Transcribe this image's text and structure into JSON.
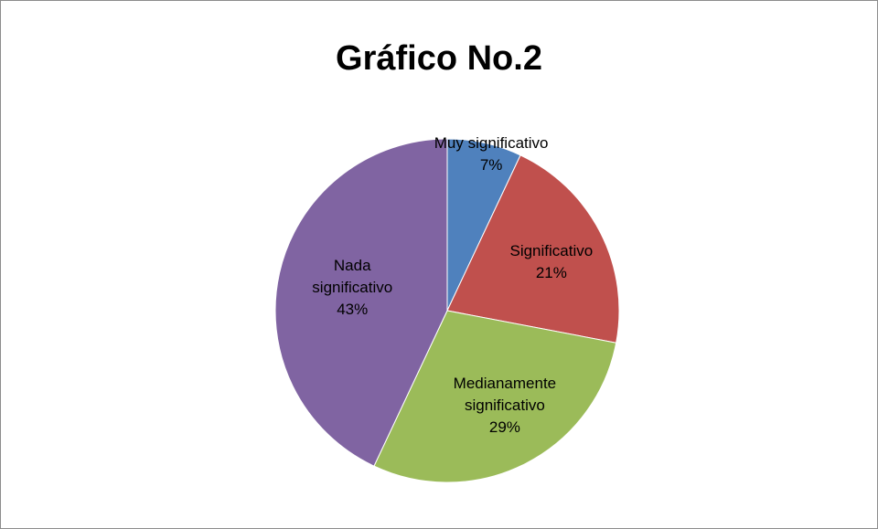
{
  "chart_data": {
    "type": "pie",
    "title": "Gráfico No.2",
    "categories": [
      "Muy significativo",
      "Significativo",
      "Medianamente significativo",
      "Nada significativo"
    ],
    "values": [
      7,
      21,
      29,
      43
    ],
    "value_labels": [
      "7%",
      "21%",
      "29%",
      "43%"
    ],
    "colors": [
      "#4f81bd",
      "#c0504d",
      "#9bbb59",
      "#8064a2"
    ]
  }
}
